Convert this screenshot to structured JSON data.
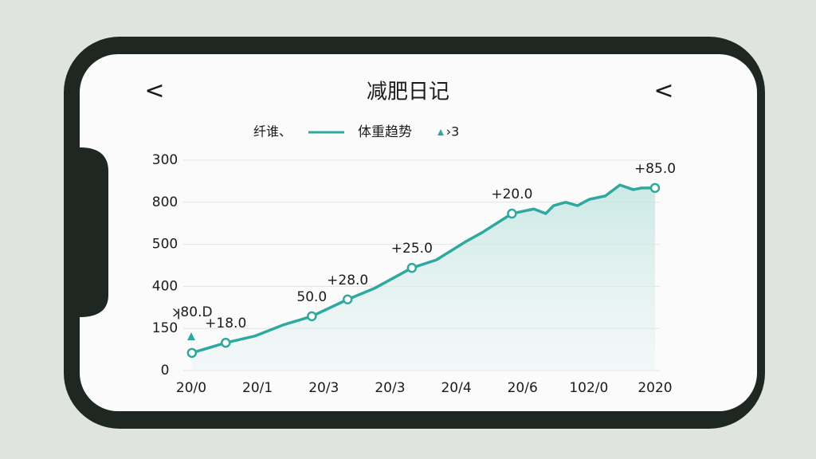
{
  "header": {
    "title": "减肥日记",
    "back_left": "<",
    "back_right": "<"
  },
  "chart_data": {
    "type": "line",
    "legend": [
      "纤谁、",
      "体重趋势",
      "›3"
    ],
    "categories": [
      "20/0",
      "20/1",
      "20/3",
      "20/3",
      "20/4",
      "20/6",
      "102/0",
      "2020"
    ],
    "xlim": [
      0,
      7
    ],
    "x": [
      0.01,
      0.52,
      0.96,
      1.38,
      1.82,
      2.36,
      2.76,
      3.33,
      3.7,
      4.15,
      4.39,
      4.84,
      5.17,
      5.35,
      5.47,
      5.65,
      5.83,
      6.01,
      6.25,
      6.47,
      6.67,
      6.8,
      7.0
    ],
    "series": [
      {
        "name": "体重趋势",
        "color": "#2fa89f",
        "values": [
          0.42,
          0.66,
          0.82,
          1.08,
          1.29,
          1.69,
          1.95,
          2.44,
          2.63,
          3.07,
          3.28,
          3.73,
          3.84,
          3.73,
          3.92,
          4.0,
          3.92,
          4.07,
          4.15,
          4.41,
          4.3,
          4.34,
          4.34
        ],
        "value_labels": [
          "ʞ80.D",
          "+18.0",
          null,
          null,
          "50.0",
          "+28.0",
          null,
          "+25.0",
          null,
          null,
          null,
          "+20.0",
          null,
          null,
          null,
          null,
          null,
          null,
          null,
          null,
          null,
          null,
          "+85.0"
        ]
      }
    ],
    "ylim": [
      0,
      5
    ],
    "yticks": [
      {
        "value": 0,
        "label": "0"
      },
      {
        "value": 1,
        "label": "150"
      },
      {
        "value": 2,
        "label": "400"
      },
      {
        "value": 3,
        "label": "500"
      },
      {
        "value": 4,
        "label": "800"
      },
      {
        "value": 5,
        "label": "300"
      }
    ],
    "grid": true
  }
}
